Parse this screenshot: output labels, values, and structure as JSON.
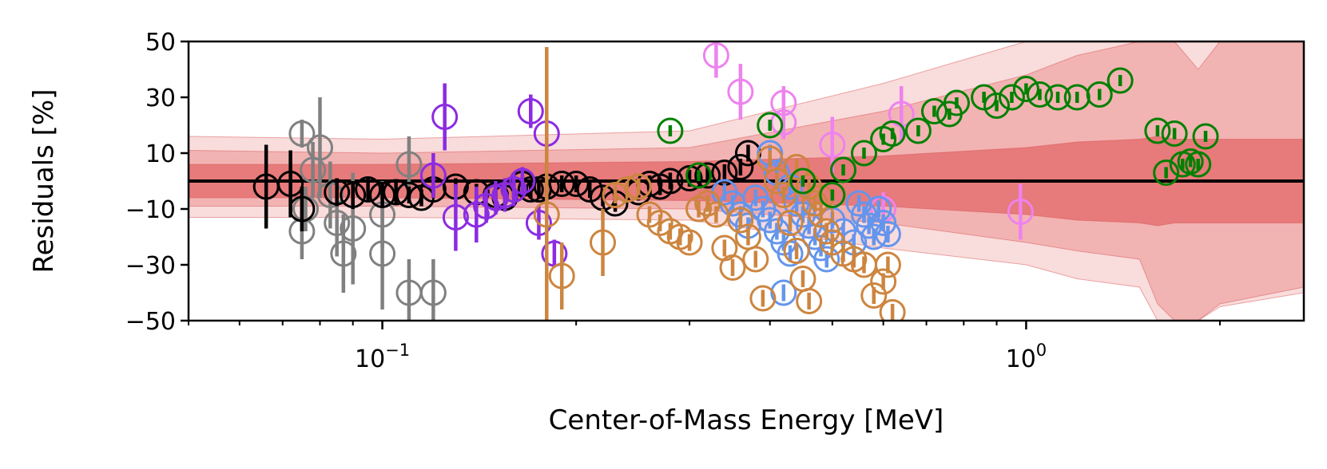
{
  "chart_data": {
    "type": "scatter",
    "title": "",
    "xlabel": "Center-of-Mass Energy [MeV]",
    "ylabel": "Residuals [%]",
    "xscale": "log",
    "xlim": [
      0.05,
      2.7
    ],
    "ylim": [
      -50,
      50
    ],
    "yticks": [
      {
        "v": 50,
        "label": "50"
      },
      {
        "v": 30,
        "label": "30"
      },
      {
        "v": 10,
        "label": "10"
      },
      {
        "v": -10,
        "label": "−10"
      },
      {
        "v": -30,
        "label": "−30"
      },
      {
        "v": -50,
        "label": "−50"
      }
    ],
    "xticks_major": [
      {
        "v": 0.1,
        "base": "10",
        "exp": "−1"
      },
      {
        "v": 1.0,
        "base": "10",
        "exp": "0"
      }
    ],
    "xticks_minor": [
      0.05,
      0.06,
      0.07,
      0.08,
      0.09,
      0.2,
      0.3,
      0.4,
      0.5,
      0.6,
      0.7,
      0.8,
      0.9,
      2.0
    ],
    "grid": false,
    "legend": "none",
    "reference_line": 0,
    "bands": {
      "x": [
        0.05,
        0.1,
        0.3,
        0.6,
        1.0,
        1.2,
        1.5,
        1.6,
        1.7,
        1.85,
        2.0,
        2.7
      ],
      "b3_lo": [
        -13,
        -13,
        -14,
        -24,
        -30,
        -35,
        -38,
        -50,
        -50,
        -50,
        -45,
        -40
      ],
      "b3_hi": [
        16,
        15,
        18,
        35,
        50,
        50,
        50,
        50,
        50,
        50,
        50,
        50
      ],
      "b2_lo": [
        -9,
        -9,
        -10,
        -15,
        -22,
        -25,
        -28,
        -44,
        -50,
        -50,
        -44,
        -38
      ],
      "b2_hi": [
        11,
        10,
        12,
        25,
        38,
        45,
        50,
        50,
        50,
        40,
        50,
        50
      ],
      "b1_lo": [
        -6,
        -6,
        -7,
        -9,
        -12,
        -14,
        -15,
        -16,
        -15,
        -15,
        -15,
        -15
      ],
      "b1_hi": [
        6,
        6,
        7,
        9,
        12,
        14,
        15,
        16,
        15,
        15,
        15,
        15
      ],
      "colors": [
        "#f9dcdc",
        "#f2b3b3",
        "#e77a7a"
      ],
      "edge": "#d95555"
    },
    "series": [
      {
        "color": "#808080",
        "points": [
          [
            0.075,
            17,
            5
          ],
          [
            0.076,
            -10,
            8
          ],
          [
            0.078,
            4,
            10
          ],
          [
            0.08,
            12,
            18
          ],
          [
            0.083,
            -5,
            12
          ],
          [
            0.085,
            -15,
            12
          ],
          [
            0.087,
            -26,
            14
          ],
          [
            0.09,
            -17,
            20
          ],
          [
            0.1,
            -12,
            12
          ],
          [
            0.1,
            -26,
            20
          ],
          [
            0.11,
            6,
            10
          ],
          [
            0.11,
            -40,
            12
          ],
          [
            0.12,
            -40,
            12
          ],
          [
            0.075,
            -18,
            10
          ]
        ]
      },
      {
        "color": "#000000",
        "points": [
          [
            0.066,
            -2,
            15
          ],
          [
            0.072,
            -1,
            12
          ],
          [
            0.075,
            -10,
            8
          ],
          [
            0.085,
            -4,
            5
          ],
          [
            0.09,
            -5,
            5
          ],
          [
            0.095,
            -3,
            4
          ],
          [
            0.1,
            -5,
            4
          ],
          [
            0.105,
            -4,
            4
          ],
          [
            0.11,
            -5,
            3
          ],
          [
            0.115,
            -6,
            3
          ],
          [
            0.12,
            -3,
            3
          ],
          [
            0.13,
            -2,
            3
          ],
          [
            0.14,
            -4,
            3
          ],
          [
            0.15,
            -5,
            3
          ],
          [
            0.16,
            -3,
            3
          ],
          [
            0.17,
            -3,
            3
          ],
          [
            0.18,
            -2,
            3
          ],
          [
            0.19,
            -1,
            3
          ],
          [
            0.2,
            -1,
            3
          ],
          [
            0.21,
            -3,
            3
          ],
          [
            0.22,
            -6,
            3
          ],
          [
            0.23,
            -8,
            3
          ],
          [
            0.25,
            -4,
            3
          ],
          [
            0.26,
            -1,
            3
          ],
          [
            0.28,
            0,
            3
          ],
          [
            0.3,
            1,
            3
          ],
          [
            0.32,
            2,
            3
          ],
          [
            0.34,
            3,
            3
          ],
          [
            0.36,
            5,
            3
          ],
          [
            0.37,
            10,
            3
          ],
          [
            0.27,
            -2,
            3
          ],
          [
            0.175,
            -3,
            3
          ],
          [
            0.165,
            -1,
            3
          ],
          [
            0.155,
            -6,
            3
          ]
        ]
      },
      {
        "color": "#8b2be2",
        "points": [
          [
            0.12,
            2,
            8
          ],
          [
            0.125,
            23,
            12
          ],
          [
            0.13,
            -13,
            12
          ],
          [
            0.14,
            -12,
            10
          ],
          [
            0.145,
            -9,
            6
          ],
          [
            0.15,
            -6,
            6
          ],
          [
            0.155,
            -5,
            6
          ],
          [
            0.16,
            -3,
            6
          ],
          [
            0.165,
            0,
            5
          ],
          [
            0.17,
            25,
            6
          ],
          [
            0.175,
            -15,
            6
          ],
          [
            0.18,
            17,
            6
          ],
          [
            0.185,
            -26,
            5
          ]
        ]
      },
      {
        "color": "#ee82ee",
        "points": [
          [
            0.33,
            45,
            8
          ],
          [
            0.36,
            32,
            10
          ],
          [
            0.42,
            28,
            6
          ],
          [
            0.42,
            21,
            6
          ],
          [
            0.5,
            13,
            10
          ],
          [
            0.64,
            24,
            10
          ],
          [
            0.6,
            -10,
            6
          ],
          [
            0.98,
            -11,
            10
          ]
        ]
      },
      {
        "color": "#6495ed",
        "points": [
          [
            0.34,
            -4,
            3
          ],
          [
            0.35,
            -8,
            3
          ],
          [
            0.36,
            -12,
            3
          ],
          [
            0.37,
            -16,
            3
          ],
          [
            0.38,
            -6,
            3
          ],
          [
            0.39,
            -10,
            3
          ],
          [
            0.4,
            -14,
            3
          ],
          [
            0.41,
            -18,
            3
          ],
          [
            0.42,
            -22,
            3
          ],
          [
            0.43,
            -26,
            3
          ],
          [
            0.44,
            -8,
            3
          ],
          [
            0.45,
            -12,
            3
          ],
          [
            0.46,
            -16,
            3
          ],
          [
            0.47,
            -20,
            3
          ],
          [
            0.48,
            -24,
            3
          ],
          [
            0.49,
            -28,
            3
          ],
          [
            0.5,
            -14,
            3
          ],
          [
            0.52,
            -18,
            3
          ],
          [
            0.54,
            -22,
            3
          ],
          [
            0.55,
            -8,
            3
          ],
          [
            0.56,
            -12,
            3
          ],
          [
            0.57,
            -16,
            3
          ],
          [
            0.58,
            -20,
            3
          ],
          [
            0.59,
            -10,
            3
          ],
          [
            0.6,
            -15,
            3
          ],
          [
            0.61,
            -19,
            3
          ],
          [
            0.42,
            -40,
            3
          ],
          [
            0.4,
            10,
            3
          ],
          [
            0.41,
            3,
            3
          ],
          [
            0.43,
            -2,
            3
          ]
        ]
      },
      {
        "color": "#cd853f",
        "points": [
          [
            0.18,
            -12,
            60
          ],
          [
            0.19,
            -34,
            12
          ],
          [
            0.22,
            -22,
            12
          ],
          [
            0.23,
            -5,
            3
          ],
          [
            0.24,
            -3,
            3
          ],
          [
            0.25,
            -2,
            3
          ],
          [
            0.26,
            -12,
            3
          ],
          [
            0.27,
            -15,
            3
          ],
          [
            0.28,
            -18,
            3
          ],
          [
            0.29,
            -20,
            3
          ],
          [
            0.3,
            -22,
            3
          ],
          [
            0.31,
            -10,
            3
          ],
          [
            0.32,
            -8,
            3
          ],
          [
            0.33,
            -12,
            3
          ],
          [
            0.34,
            -24,
            3
          ],
          [
            0.35,
            -31,
            3
          ],
          [
            0.36,
            -14,
            3
          ],
          [
            0.37,
            -20,
            3
          ],
          [
            0.38,
            -28,
            3
          ],
          [
            0.39,
            -42,
            3
          ],
          [
            0.4,
            8,
            3
          ],
          [
            0.41,
            0,
            3
          ],
          [
            0.42,
            -5,
            3
          ],
          [
            0.43,
            -15,
            3
          ],
          [
            0.44,
            -25,
            3
          ],
          [
            0.45,
            -35,
            3
          ],
          [
            0.46,
            -43,
            3
          ],
          [
            0.47,
            -8,
            3
          ],
          [
            0.48,
            -12,
            3
          ],
          [
            0.49,
            -18,
            3
          ],
          [
            0.5,
            -22,
            3
          ],
          [
            0.52,
            -26,
            3
          ],
          [
            0.54,
            -28,
            3
          ],
          [
            0.56,
            -30,
            3
          ],
          [
            0.58,
            -41,
            3
          ],
          [
            0.6,
            -36,
            3
          ],
          [
            0.62,
            -47,
            3
          ],
          [
            0.61,
            -30,
            3
          ],
          [
            0.44,
            5,
            3
          ],
          [
            0.46,
            -2,
            3
          ],
          [
            0.48,
            -6,
            3
          ]
        ]
      },
      {
        "color": "#008000",
        "points": [
          [
            0.28,
            18,
            2
          ],
          [
            0.31,
            2,
            2
          ],
          [
            0.4,
            20,
            2
          ],
          [
            0.52,
            4,
            2
          ],
          [
            0.56,
            10,
            2
          ],
          [
            0.6,
            15,
            2
          ],
          [
            0.62,
            17,
            2
          ],
          [
            0.68,
            18,
            2
          ],
          [
            0.72,
            25,
            2
          ],
          [
            0.76,
            24,
            2
          ],
          [
            0.78,
            28,
            2
          ],
          [
            0.86,
            30,
            2
          ],
          [
            0.9,
            27,
            2
          ],
          [
            0.95,
            30,
            2
          ],
          [
            1.0,
            33,
            2
          ],
          [
            1.05,
            31,
            2
          ],
          [
            1.12,
            30,
            2
          ],
          [
            1.2,
            30,
            2
          ],
          [
            1.3,
            31,
            2
          ],
          [
            1.4,
            36,
            2
          ],
          [
            1.6,
            18,
            2
          ],
          [
            1.65,
            3,
            2
          ],
          [
            1.7,
            17,
            2
          ],
          [
            1.75,
            6,
            2
          ],
          [
            1.8,
            7,
            2
          ],
          [
            1.85,
            6,
            2
          ],
          [
            1.9,
            16,
            2
          ],
          [
            0.45,
            0,
            2
          ],
          [
            0.5,
            -5,
            2
          ]
        ]
      }
    ]
  }
}
